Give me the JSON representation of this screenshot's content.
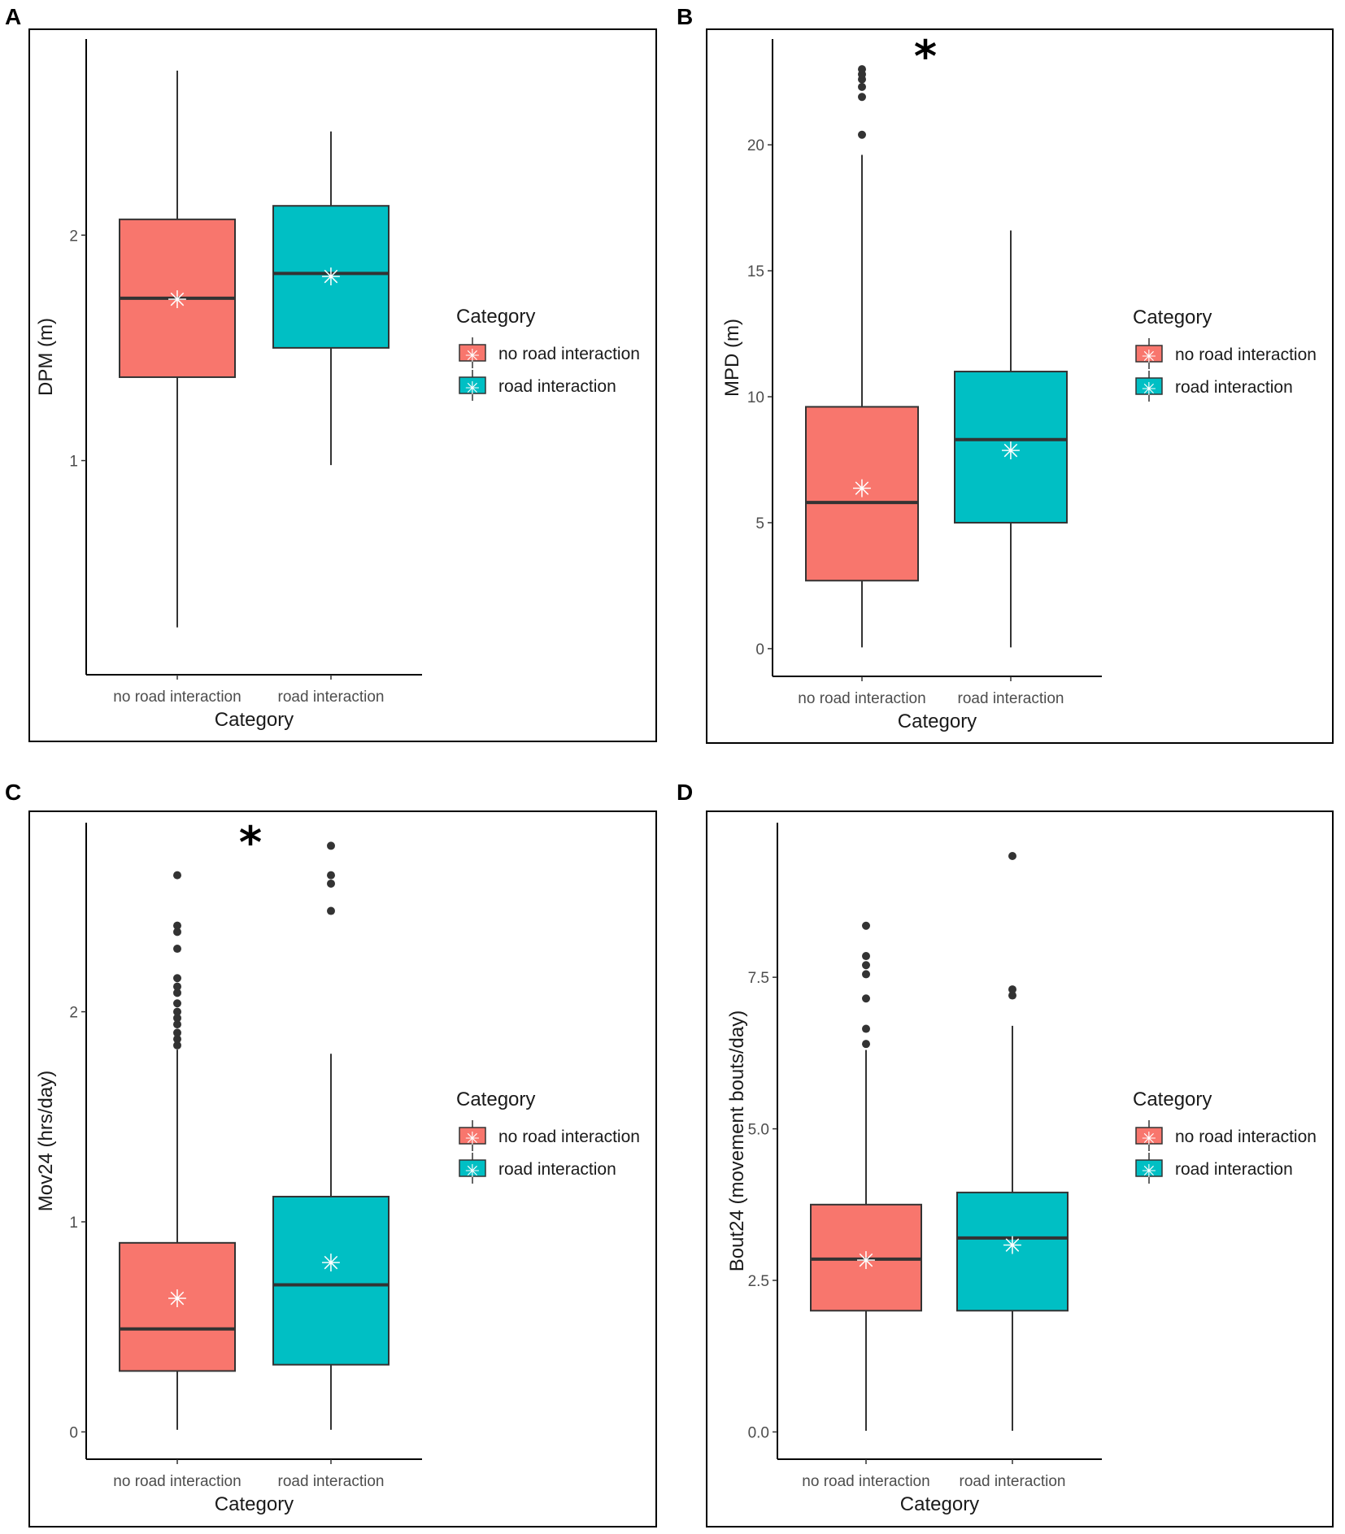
{
  "figure": {
    "panels": [
      {
        "letter": "A",
        "significance": ""
      },
      {
        "letter": "B",
        "significance": "*"
      },
      {
        "letter": "C",
        "significance": "*"
      },
      {
        "letter": "D",
        "significance": ""
      }
    ]
  },
  "chart_data": [
    {
      "panel": "A",
      "type": "boxplot",
      "xlabel": "Category",
      "ylabel": "DPM (m)",
      "ylim": [
        0.05,
        2.87
      ],
      "yticks": [
        1,
        2
      ],
      "ytick_labels": [
        "1",
        "2"
      ],
      "categories": [
        "no road interaction",
        "road interaction"
      ],
      "colors": [
        "#F8766D",
        "#00BFC4"
      ],
      "boxes": [
        {
          "category": "no road interaction",
          "whisker_low": 0.26,
          "q1": 1.37,
          "median": 1.72,
          "q3": 2.07,
          "whisker_high": 2.73,
          "mean": 1.72,
          "outliers": []
        },
        {
          "category": "road interaction",
          "whisker_low": 0.98,
          "q1": 1.5,
          "median": 1.83,
          "q3": 2.13,
          "whisker_high": 2.46,
          "mean": 1.82,
          "outliers": []
        }
      ],
      "legend": {
        "title": "Category",
        "entries": [
          "no road interaction",
          "road interaction"
        ],
        "position": "right"
      }
    },
    {
      "panel": "B",
      "type": "boxplot",
      "xlabel": "Category",
      "ylabel": "MPD (m)",
      "ylim": [
        -1.1,
        24.2
      ],
      "yticks": [
        0,
        5,
        10,
        15,
        20
      ],
      "ytick_labels": [
        "0",
        "5",
        "10",
        "15",
        "20"
      ],
      "categories": [
        "no road interaction",
        "road interaction"
      ],
      "colors": [
        "#F8766D",
        "#00BFC4"
      ],
      "boxes": [
        {
          "category": "no road interaction",
          "whisker_low": 0.05,
          "q1": 2.7,
          "median": 5.8,
          "q3": 9.6,
          "whisker_high": 19.6,
          "mean": 6.4,
          "outliers": [
            20.4,
            21.9,
            22.3,
            22.6,
            22.8,
            23.0
          ]
        },
        {
          "category": "road interaction",
          "whisker_low": 0.05,
          "q1": 5.0,
          "median": 8.3,
          "q3": 11.0,
          "whisker_high": 16.6,
          "mean": 7.9,
          "outliers": []
        }
      ],
      "legend": {
        "title": "Category",
        "entries": [
          "no road interaction",
          "road interaction"
        ],
        "position": "right"
      }
    },
    {
      "panel": "C",
      "type": "boxplot",
      "xlabel": "Category",
      "ylabel": "Mov24 (hrs/day)",
      "ylim": [
        -0.13,
        2.9
      ],
      "yticks": [
        0,
        1,
        2
      ],
      "ytick_labels": [
        "0",
        "1",
        "2"
      ],
      "categories": [
        "no road interaction",
        "road interaction"
      ],
      "colors": [
        "#F8766D",
        "#00BFC4"
      ],
      "boxes": [
        {
          "category": "no road interaction",
          "whisker_low": 0.01,
          "q1": 0.29,
          "median": 0.49,
          "q3": 0.9,
          "whisker_high": 1.82,
          "mean": 0.64,
          "outliers": [
            1.84,
            1.87,
            1.9,
            1.94,
            1.97,
            2.0,
            2.04,
            2.09,
            2.12,
            2.16,
            2.3,
            2.38,
            2.41,
            2.65
          ]
        },
        {
          "category": "road interaction",
          "whisker_low": 0.01,
          "q1": 0.32,
          "median": 0.7,
          "q3": 1.12,
          "whisker_high": 1.8,
          "mean": 0.81,
          "outliers": [
            2.48,
            2.61,
            2.65,
            2.79
          ]
        }
      ],
      "legend": {
        "title": "Category",
        "entries": [
          "no road interaction",
          "road interaction"
        ],
        "position": "right"
      }
    },
    {
      "panel": "D",
      "type": "boxplot",
      "xlabel": "Category",
      "ylabel": "Bout24 (movement bouts/day)",
      "ylim": [
        -0.45,
        10.05
      ],
      "yticks": [
        0,
        2.5,
        5,
        7.5
      ],
      "ytick_labels": [
        "0.0",
        "2.5",
        "5.0",
        "7.5"
      ],
      "categories": [
        "no road interaction",
        "road interaction"
      ],
      "colors": [
        "#F8766D",
        "#00BFC4"
      ],
      "boxes": [
        {
          "category": "no road interaction",
          "whisker_low": 0.02,
          "q1": 2.0,
          "median": 2.85,
          "q3": 3.75,
          "whisker_high": 6.3,
          "mean": 2.85,
          "outliers": [
            6.4,
            6.65,
            7.15,
            7.55,
            7.7,
            7.85,
            8.35
          ]
        },
        {
          "category": "road interaction",
          "whisker_low": 0.02,
          "q1": 2.0,
          "median": 3.2,
          "q3": 3.95,
          "whisker_high": 6.7,
          "mean": 3.1,
          "outliers": [
            7.2,
            7.3,
            9.5
          ]
        }
      ],
      "legend": {
        "title": "Category",
        "entries": [
          "no road interaction",
          "road interaction"
        ],
        "position": "right"
      }
    }
  ]
}
